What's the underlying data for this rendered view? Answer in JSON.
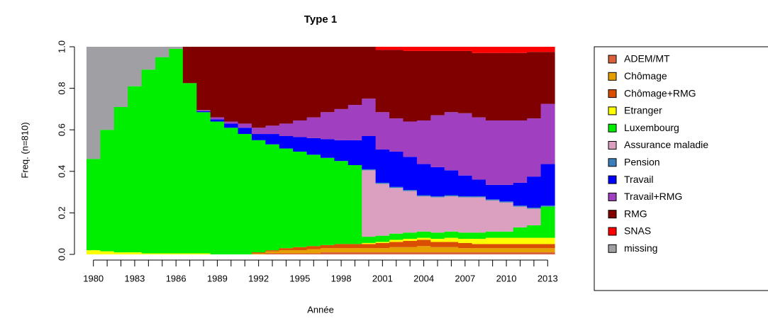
{
  "chart_data": {
    "type": "bar",
    "stacked": true,
    "title": "Type 1",
    "x_label": "Année",
    "y_label": "Freq. (n=810)",
    "categories": [
      "1980",
      null,
      null,
      "1983",
      null,
      null,
      "1986",
      null,
      null,
      "1989",
      null,
      null,
      "1992",
      null,
      null,
      "1995",
      null,
      null,
      "1998",
      null,
      null,
      "2001",
      null,
      null,
      "2004",
      null,
      null,
      "2007",
      null,
      null,
      "2010",
      null,
      null,
      "2013"
    ],
    "ylim": [
      0,
      1
    ],
    "yticks": [
      {
        "value": 0,
        "label": "0.0"
      },
      0.2,
      0.4,
      0.6,
      0.8,
      {
        "value": 1,
        "label": "1.0"
      }
    ],
    "series": [
      {
        "name": "ADEM/MT",
        "color": "#d9603b",
        "values": [
          0,
          0,
          0,
          0,
          0,
          0,
          0,
          0,
          0,
          0,
          0,
          0,
          0,
          0.005,
          0.005,
          0.005,
          0.005,
          0.01,
          0.01,
          0.01,
          0.01,
          0.01,
          0.01,
          0.01,
          0.01,
          0.01,
          0.01,
          0.01,
          0.01,
          0.01,
          0.01,
          0.01,
          0.01,
          0.01
        ]
      },
      {
        "name": "Chômage",
        "color": "#e69f00",
        "values": [
          0,
          0,
          0,
          0,
          0,
          0,
          0,
          0,
          0,
          0,
          0,
          0,
          0.005,
          0.01,
          0.015,
          0.015,
          0.02,
          0.02,
          0.02,
          0.02,
          0.02,
          0.02,
          0.025,
          0.025,
          0.03,
          0.025,
          0.025,
          0.02,
          0.02,
          0.02,
          0.02,
          0.02,
          0.02,
          0.02
        ]
      },
      {
        "name": "Chômage+RMG",
        "color": "#d94e00",
        "values": [
          0,
          0,
          0,
          0,
          0,
          0,
          0,
          0,
          0,
          0,
          0,
          0,
          0.005,
          0.005,
          0.01,
          0.015,
          0.015,
          0.015,
          0.02,
          0.02,
          0.02,
          0.025,
          0.025,
          0.03,
          0.03,
          0.025,
          0.025,
          0.025,
          0.02,
          0.02,
          0.02,
          0.02,
          0.02,
          0.02
        ]
      },
      {
        "name": "Etranger",
        "color": "#ffff00",
        "values": [
          0.02,
          0.015,
          0.01,
          0.01,
          0.005,
          0.005,
          0.005,
          0.005,
          0.005,
          0,
          0,
          0,
          0,
          0,
          0,
          0,
          0,
          0,
          0,
          0,
          0.005,
          0.005,
          0.01,
          0.01,
          0.01,
          0.015,
          0.02,
          0.02,
          0.025,
          0.03,
          0.03,
          0.03,
          0.03,
          0.03
        ]
      },
      {
        "name": "Luxembourg",
        "color": "#00ee00",
        "values": [
          0.44,
          0.585,
          0.7,
          0.8,
          0.885,
          0.945,
          0.985,
          0.82,
          0.68,
          0.64,
          0.61,
          0.58,
          0.54,
          0.51,
          0.48,
          0.46,
          0.44,
          0.42,
          0.4,
          0.38,
          0.03,
          0.03,
          0.03,
          0.03,
          0.03,
          0.03,
          0.03,
          0.03,
          0.03,
          0.03,
          0.03,
          0.05,
          0.06,
          0.15
        ]
      },
      {
        "name": "Assurance maladie",
        "color": "#dba0c0",
        "values": [
          0,
          0,
          0,
          0,
          0,
          0,
          0,
          0,
          0,
          0,
          0,
          0,
          0,
          0,
          0,
          0,
          0,
          0,
          0,
          0,
          0.32,
          0.25,
          0.22,
          0.2,
          0.17,
          0.17,
          0.17,
          0.17,
          0.17,
          0.15,
          0.14,
          0.1,
          0.08,
          0
        ]
      },
      {
        "name": "Pension",
        "color": "#3a7fb9",
        "values": [
          0,
          0,
          0,
          0,
          0,
          0,
          0,
          0,
          0,
          0,
          0,
          0,
          0,
          0,
          0,
          0,
          0,
          0,
          0,
          0,
          0.005,
          0.005,
          0.005,
          0.005,
          0.005,
          0.005,
          0.005,
          0.005,
          0.005,
          0.005,
          0.005,
          0.005,
          0.005,
          0.005
        ]
      },
      {
        "name": "Travail",
        "color": "#0000ff",
        "values": [
          0,
          0,
          0,
          0,
          0,
          0,
          0,
          0,
          0.005,
          0.01,
          0.02,
          0.03,
          0.03,
          0.05,
          0.06,
          0.07,
          0.08,
          0.09,
          0.1,
          0.12,
          0.16,
          0.16,
          0.17,
          0.16,
          0.15,
          0.14,
          0.12,
          0.1,
          0.08,
          0.07,
          0.08,
          0.11,
          0.15,
          0.2
        ]
      },
      {
        "name": "Travail+RMG",
        "color": "#a040c0",
        "values": [
          0,
          0,
          0,
          0,
          0,
          0,
          0,
          0,
          0.005,
          0.01,
          0.01,
          0.02,
          0.03,
          0.04,
          0.06,
          0.08,
          0.1,
          0.13,
          0.15,
          0.17,
          0.18,
          0.18,
          0.16,
          0.17,
          0.21,
          0.25,
          0.28,
          0.3,
          0.3,
          0.31,
          0.31,
          0.3,
          0.28,
          0.29
        ]
      },
      {
        "name": "RMG",
        "color": "#800000",
        "values": [
          0,
          0,
          0,
          0,
          0,
          0,
          0,
          0.175,
          0.305,
          0.34,
          0.36,
          0.37,
          0.39,
          0.38,
          0.37,
          0.355,
          0.34,
          0.315,
          0.3,
          0.28,
          0.25,
          0.3,
          0.33,
          0.34,
          0.335,
          0.31,
          0.295,
          0.3,
          0.31,
          0.325,
          0.325,
          0.325,
          0.32,
          0.25
        ]
      },
      {
        "name": "SNAS",
        "color": "#ff0000",
        "values": [
          0,
          0,
          0,
          0,
          0,
          0,
          0,
          0,
          0,
          0,
          0,
          0,
          0,
          0,
          0,
          0,
          0,
          0,
          0,
          0,
          0,
          0.015,
          0.015,
          0.02,
          0.02,
          0.02,
          0.02,
          0.02,
          0.03,
          0.03,
          0.03,
          0.03,
          0.025,
          0.025
        ]
      },
      {
        "name": "missing",
        "color": "#a0a0a4",
        "values": [
          0.54,
          0.4,
          0.29,
          0.19,
          0.11,
          0.05,
          0.01,
          0,
          0,
          0,
          0,
          0,
          0,
          0,
          0,
          0,
          0,
          0,
          0,
          0,
          0,
          0,
          0,
          0,
          0,
          0,
          0,
          0,
          0,
          0,
          0,
          0,
          0,
          0
        ]
      }
    ]
  }
}
